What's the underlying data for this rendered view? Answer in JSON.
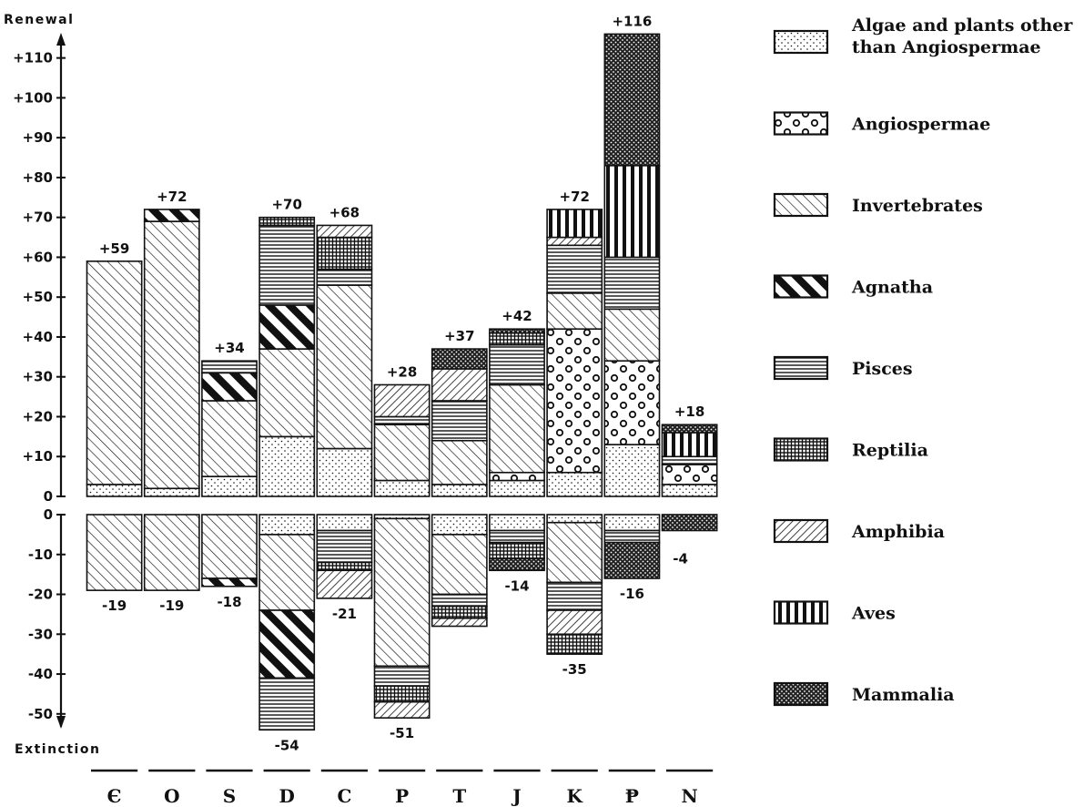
{
  "chart_data": {
    "type": "bar",
    "stacked": true,
    "title": "",
    "ylabel_top": "Renewal",
    "ylabel_bottom": "Extinction",
    "categories": [
      "Є",
      "O",
      "S",
      "D",
      "C",
      "P",
      "T",
      "J",
      "K",
      "Ᵽ",
      "N"
    ],
    "ylim": [
      -55,
      118
    ],
    "ticks_positive": [
      "+110",
      "+100",
      "+90",
      "+80",
      "+70",
      "+60",
      "+50",
      "+40",
      "+30",
      "+20",
      "+10",
      "0"
    ],
    "ticks_negative": [
      "0",
      "-10",
      "-20",
      "-30",
      "-40",
      "-50"
    ],
    "renewal_totals": [
      59,
      72,
      34,
      70,
      68,
      28,
      37,
      42,
      72,
      116,
      18
    ],
    "renewal_labels": [
      "+59",
      "+72",
      "+34",
      "+70",
      "+68",
      "+28",
      "+37",
      "+42",
      "+72",
      "+116",
      "+18"
    ],
    "extinction_totals": [
      -19,
      -19,
      -18,
      -54,
      -21,
      -51,
      -28,
      -14,
      -35,
      -16,
      -4
    ],
    "extinction_labels": [
      "-19",
      "-19",
      "-18",
      "-54",
      "-21",
      "-51",
      "",
      "-14",
      "-35",
      "-16",
      "-4"
    ],
    "renewal": [
      [
        [
          "algae",
          3
        ],
        [
          "invertebrates",
          56
        ]
      ],
      [
        [
          "algae",
          2
        ],
        [
          "invertebrates",
          67
        ],
        [
          "agnatha",
          3
        ]
      ],
      [
        [
          "algae",
          5
        ],
        [
          "invertebrates",
          19
        ],
        [
          "agnatha",
          7
        ],
        [
          "pisces",
          3
        ]
      ],
      [
        [
          "algae",
          15
        ],
        [
          "invertebrates",
          22
        ],
        [
          "agnatha",
          11
        ],
        [
          "pisces",
          20
        ],
        [
          "reptilia",
          2
        ]
      ],
      [
        [
          "algae",
          12
        ],
        [
          "invertebrates",
          41
        ],
        [
          "pisces",
          4
        ],
        [
          "reptilia",
          8
        ],
        [
          "amphibia",
          3
        ]
      ],
      [
        [
          "algae",
          4
        ],
        [
          "invertebrates",
          14
        ],
        [
          "pisces",
          2
        ],
        [
          "amphibia",
          8
        ]
      ],
      [
        [
          "algae",
          3
        ],
        [
          "invertebrates",
          11
        ],
        [
          "pisces",
          10
        ],
        [
          "amphibia",
          8
        ],
        [
          "mammalia",
          5
        ]
      ],
      [
        [
          "algae",
          4
        ],
        [
          "angiospermae",
          2
        ],
        [
          "invertebrates",
          22
        ],
        [
          "pisces",
          10
        ],
        [
          "reptilia",
          3
        ],
        [
          "mammalia",
          1
        ]
      ],
      [
        [
          "algae",
          6
        ],
        [
          "angiospermae",
          36
        ],
        [
          "invertebrates",
          9
        ],
        [
          "pisces",
          12
        ],
        [
          "amphibia",
          2
        ],
        [
          "aves",
          7
        ]
      ],
      [
        [
          "algae",
          13
        ],
        [
          "angiospermae",
          21
        ],
        [
          "invertebrates",
          13
        ],
        [
          "pisces",
          13
        ],
        [
          "aves",
          23
        ],
        [
          "mammalia",
          33
        ]
      ],
      [
        [
          "algae",
          3
        ],
        [
          "angiospermae",
          5
        ],
        [
          "pisces",
          2
        ],
        [
          "aves",
          6
        ],
        [
          "mammalia",
          2
        ]
      ]
    ],
    "extinction": [
      [
        [
          "invertebrates",
          19
        ]
      ],
      [
        [
          "invertebrates",
          19
        ]
      ],
      [
        [
          "invertebrates",
          16
        ],
        [
          "agnatha",
          2
        ]
      ],
      [
        [
          "algae",
          5
        ],
        [
          "invertebrates",
          19
        ],
        [
          "agnatha",
          17
        ],
        [
          "pisces",
          13
        ]
      ],
      [
        [
          "algae",
          4
        ],
        [
          "pisces",
          8
        ],
        [
          "reptilia",
          2
        ],
        [
          "amphibia",
          7
        ]
      ],
      [
        [
          "algae",
          1
        ],
        [
          "invertebrates",
          37
        ],
        [
          "pisces",
          5
        ],
        [
          "reptilia",
          4
        ],
        [
          "amphibia",
          4
        ]
      ],
      [
        [
          "algae",
          5
        ],
        [
          "invertebrates",
          15
        ],
        [
          "pisces",
          3
        ],
        [
          "reptilia",
          3
        ],
        [
          "amphibia",
          2
        ]
      ],
      [
        [
          "algae",
          4
        ],
        [
          "pisces",
          3
        ],
        [
          "reptilia",
          4
        ],
        [
          "mammalia",
          3
        ]
      ],
      [
        [
          "algae",
          2
        ],
        [
          "invertebrates",
          15
        ],
        [
          "pisces",
          7
        ],
        [
          "amphibia",
          6
        ],
        [
          "reptilia",
          5
        ]
      ],
      [
        [
          "algae",
          4
        ],
        [
          "pisces",
          3
        ],
        [
          "mammalia",
          9
        ]
      ],
      [
        [
          "mammalia",
          4
        ]
      ]
    ],
    "legend": [
      {
        "key": "algae",
        "label_lines": [
          "Algae and plants other",
          "than Angiospermae"
        ]
      },
      {
        "key": "angiospermae",
        "label_lines": [
          "Angiospermae"
        ]
      },
      {
        "key": "invertebrates",
        "label_lines": [
          "Invertebrates"
        ]
      },
      {
        "key": "agnatha",
        "label_lines": [
          "Agnatha"
        ]
      },
      {
        "key": "pisces",
        "label_lines": [
          "Pisces"
        ]
      },
      {
        "key": "reptilia",
        "label_lines": [
          "Reptilia"
        ]
      },
      {
        "key": "amphibia",
        "label_lines": [
          "Amphibia"
        ]
      },
      {
        "key": "aves",
        "label_lines": [
          "Aves"
        ]
      },
      {
        "key": "mammalia",
        "label_lines": [
          "Mammalia"
        ]
      }
    ],
    "legend_placement": "right",
    "grid": false
  }
}
